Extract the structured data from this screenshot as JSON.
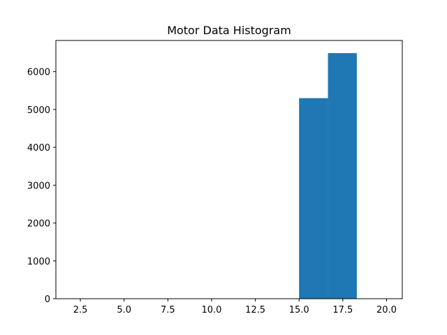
{
  "chart_data": {
    "type": "bar",
    "title": "Motor Data Histogram",
    "xlabel": "",
    "ylabel": "",
    "xlim": [
      1.1,
      20.9
    ],
    "ylim": [
      0,
      6824
    ],
    "bar_color": "#1f77b4",
    "grid": false,
    "legend": "none",
    "bins": [
      {
        "x0": 15.0,
        "x1": 16.65,
        "count": 5300
      },
      {
        "x0": 16.65,
        "x1": 18.3,
        "count": 6490
      }
    ],
    "x_ticks": [
      {
        "value": 2.5,
        "label": "2.5"
      },
      {
        "value": 5.0,
        "label": "5.0"
      },
      {
        "value": 7.5,
        "label": "7.5"
      },
      {
        "value": 10.0,
        "label": "10.0"
      },
      {
        "value": 12.5,
        "label": "12.5"
      },
      {
        "value": 15.0,
        "label": "15.0"
      },
      {
        "value": 17.5,
        "label": "17.5"
      },
      {
        "value": 20.0,
        "label": "20.0"
      }
    ],
    "y_ticks": [
      {
        "value": 0,
        "label": "0"
      },
      {
        "value": 1000,
        "label": "1000"
      },
      {
        "value": 2000,
        "label": "2000"
      },
      {
        "value": 3000,
        "label": "3000"
      },
      {
        "value": 4000,
        "label": "4000"
      },
      {
        "value": 5000,
        "label": "5000"
      },
      {
        "value": 6000,
        "label": "6000"
      }
    ]
  }
}
